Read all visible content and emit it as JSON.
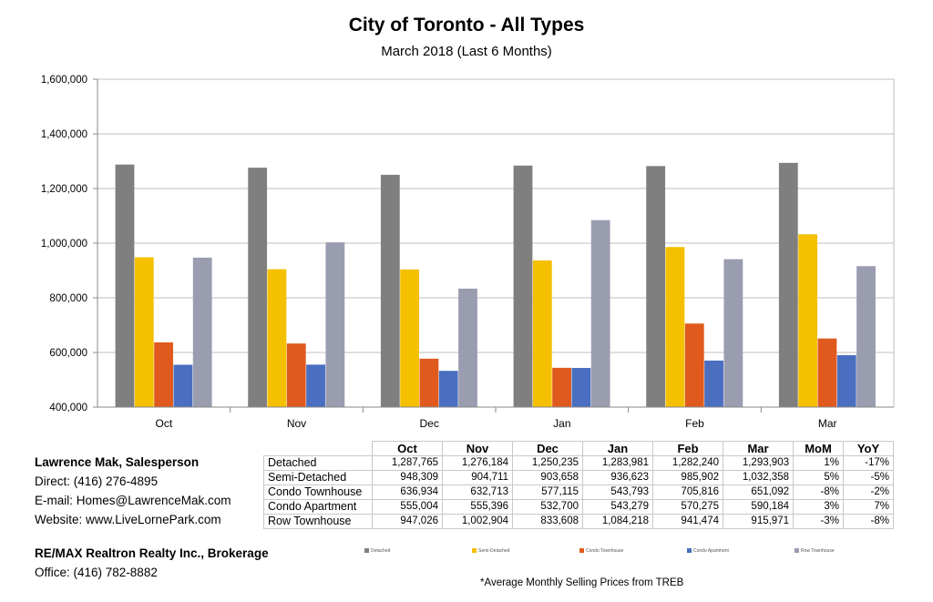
{
  "chart_data": {
    "type": "bar",
    "title": "City of Toronto - All Types",
    "subtitle": "March 2018 (Last 6 Months)",
    "categories": [
      "Oct",
      "Nov",
      "Dec",
      "Jan",
      "Feb",
      "Mar"
    ],
    "ylim": [
      400000,
      1600000
    ],
    "yticks": [
      "400,000",
      "600,000",
      "800,000",
      "1,000,000",
      "1,200,000",
      "1,400,000",
      "1,600,000"
    ],
    "grid": true,
    "legend_position": "bottom",
    "series": [
      {
        "name": "Detached",
        "color": "#7f7f7f",
        "values": [
          1287765,
          1276184,
          1250235,
          1283981,
          1282240,
          1293903
        ]
      },
      {
        "name": "Semi-Detached",
        "color": "#f5c000",
        "values": [
          948309,
          904711,
          903658,
          936623,
          985902,
          1032358
        ]
      },
      {
        "name": "Condo Townhouse",
        "color": "#e05a1e",
        "values": [
          636934,
          632713,
          577115,
          543793,
          705816,
          651092
        ]
      },
      {
        "name": "Condo Apartment",
        "color": "#4a6fc1",
        "values": [
          555004,
          555396,
          532700,
          543279,
          570275,
          590184
        ]
      },
      {
        "name": "Row Townhouse",
        "color": "#9a9cb0",
        "values": [
          947026,
          1002904,
          833608,
          1084218,
          941474,
          915971
        ]
      }
    ]
  },
  "table": {
    "headers": [
      "Oct",
      "Nov",
      "Dec",
      "Jan",
      "Feb",
      "Mar",
      "MoM",
      "YoY"
    ],
    "rows": [
      {
        "label": "Detached",
        "cells": [
          "1,287,765",
          "1,276,184",
          "1,250,235",
          "1,283,981",
          "1,282,240",
          "1,293,903",
          "1%",
          "-17%"
        ]
      },
      {
        "label": "Semi-Detached",
        "cells": [
          "948,309",
          "904,711",
          "903,658",
          "936,623",
          "985,902",
          "1,032,358",
          "5%",
          "-5%"
        ]
      },
      {
        "label": "Condo Townhouse",
        "cells": [
          "636,934",
          "632,713",
          "577,115",
          "543,793",
          "705,816",
          "651,092",
          "-8%",
          "-2%"
        ]
      },
      {
        "label": "Condo Apartment",
        "cells": [
          "555,004",
          "555,396",
          "532,700",
          "543,279",
          "570,275",
          "590,184",
          "3%",
          "7%"
        ]
      },
      {
        "label": "Row Townhouse",
        "cells": [
          "947,026",
          "1,002,904",
          "833,608",
          "1,084,218",
          "941,474",
          "915,971",
          "-3%",
          "-8%"
        ]
      }
    ]
  },
  "contact": {
    "name": "Lawrence Mak, Salesperson",
    "direct": "Direct:  (416) 276-4895",
    "email": "E-mail:  Homes@LawrenceMak.com",
    "website": "Website: www.LiveLornePark.com",
    "brokerage": "RE/MAX Realtron Realty Inc., Brokerage",
    "office": "Office: (416) 782-8882"
  },
  "footnote": "*Average Monthly Selling Prices  from TREB"
}
